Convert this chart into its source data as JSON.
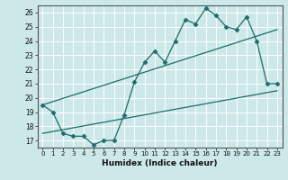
{
  "xlabel": "Humidex (Indice chaleur)",
  "bg_color": "#cce8e8",
  "line_color": "#1e6b6b",
  "grid_color": "#ffffff",
  "xlim": [
    -0.5,
    23.5
  ],
  "ylim": [
    16.5,
    26.5
  ],
  "xticks": [
    0,
    1,
    2,
    3,
    4,
    5,
    6,
    7,
    8,
    9,
    10,
    11,
    12,
    13,
    14,
    15,
    16,
    17,
    18,
    19,
    20,
    21,
    22,
    23
  ],
  "yticks": [
    17,
    18,
    19,
    20,
    21,
    22,
    23,
    24,
    25,
    26
  ],
  "zigzag_x": [
    0,
    1,
    2,
    3,
    4,
    5,
    6,
    7,
    8,
    9,
    10,
    11,
    12,
    13,
    14,
    15,
    16,
    17,
    18,
    19,
    20,
    21,
    22,
    23
  ],
  "zigzag_y": [
    19.5,
    19.0,
    17.5,
    17.3,
    17.3,
    16.7,
    17.0,
    17.0,
    18.8,
    21.1,
    22.5,
    23.3,
    22.5,
    24.0,
    25.5,
    25.2,
    26.3,
    25.8,
    25.0,
    24.8,
    25.7,
    24.0,
    21.0,
    21.0
  ],
  "upper_line_x": [
    0,
    23
  ],
  "upper_line_y": [
    19.5,
    24.8
  ],
  "lower_line_x": [
    0,
    23
  ],
  "lower_line_y": [
    17.5,
    20.5
  ]
}
